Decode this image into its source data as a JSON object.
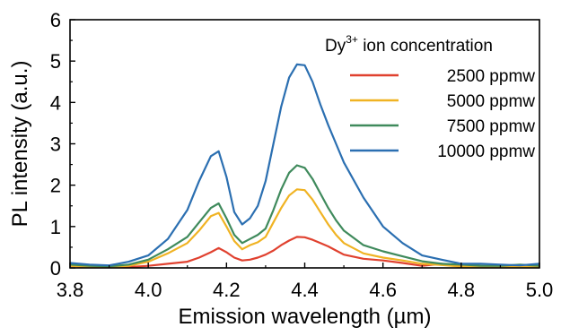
{
  "chart_data": {
    "type": "line",
    "title": "",
    "xlabel": "Emission wavelength (µm)",
    "ylabel": "PL intensity (a.u.)",
    "xlim": [
      3.8,
      5.0
    ],
    "ylim": [
      0,
      6
    ],
    "xticks": [
      "3.8",
      "4.0",
      "4.2",
      "4.4",
      "4.6",
      "4.8",
      "5.0"
    ],
    "yticks": [
      "0",
      "1",
      "2",
      "3",
      "4",
      "5",
      "6"
    ],
    "grid": false,
    "legend_position": "top-right",
    "legend_title": {
      "base": "Dy",
      "sup": "3+",
      "rest": " ion concentration"
    },
    "series": [
      {
        "name": "2500 ppmw",
        "color": "#e0412f",
        "x": [
          3.8,
          3.85,
          3.9,
          3.95,
          4.0,
          4.05,
          4.1,
          4.13,
          4.16,
          4.18,
          4.2,
          4.22,
          4.24,
          4.26,
          4.28,
          4.3,
          4.32,
          4.34,
          4.36,
          4.38,
          4.4,
          4.42,
          4.44,
          4.46,
          4.48,
          4.5,
          4.55,
          4.6,
          4.65,
          4.7,
          4.75,
          4.8,
          4.85,
          4.9,
          4.95,
          5.0
        ],
        "y": [
          0.05,
          0.02,
          0.03,
          0.02,
          0.05,
          0.1,
          0.15,
          0.25,
          0.38,
          0.48,
          0.38,
          0.25,
          0.18,
          0.2,
          0.25,
          0.32,
          0.42,
          0.55,
          0.66,
          0.75,
          0.74,
          0.68,
          0.6,
          0.52,
          0.42,
          0.32,
          0.22,
          0.18,
          0.12,
          0.05,
          0.1,
          0.05,
          0.03,
          0.02,
          0.02,
          0.02
        ]
      },
      {
        "name": "5000 ppmw",
        "color": "#f0b323",
        "x": [
          3.8,
          3.85,
          3.9,
          3.95,
          4.0,
          4.05,
          4.1,
          4.13,
          4.16,
          4.18,
          4.2,
          4.22,
          4.24,
          4.26,
          4.28,
          4.3,
          4.32,
          4.34,
          4.36,
          4.38,
          4.4,
          4.42,
          4.44,
          4.46,
          4.48,
          4.5,
          4.55,
          4.6,
          4.65,
          4.7,
          4.75,
          4.8,
          4.85,
          4.9,
          4.95,
          5.0
        ],
        "y": [
          0.05,
          0.03,
          0.02,
          0.05,
          0.15,
          0.35,
          0.6,
          0.9,
          1.25,
          1.33,
          1.0,
          0.65,
          0.45,
          0.55,
          0.62,
          0.75,
          1.1,
          1.45,
          1.75,
          1.9,
          1.88,
          1.65,
          1.35,
          1.05,
          0.8,
          0.6,
          0.35,
          0.25,
          0.18,
          0.1,
          0.07,
          0.03,
          0.03,
          0.02,
          0.02,
          0.02
        ]
      },
      {
        "name": "7500 ppmw",
        "color": "#3f8a5c",
        "x": [
          3.8,
          3.85,
          3.9,
          3.95,
          4.0,
          4.05,
          4.1,
          4.13,
          4.16,
          4.18,
          4.2,
          4.22,
          4.24,
          4.26,
          4.28,
          4.3,
          4.32,
          4.34,
          4.36,
          4.38,
          4.4,
          4.42,
          4.44,
          4.46,
          4.48,
          4.5,
          4.55,
          4.6,
          4.65,
          4.7,
          4.75,
          4.8,
          4.85,
          4.9,
          4.95,
          5.0
        ],
        "y": [
          0.08,
          0.05,
          0.04,
          0.08,
          0.2,
          0.45,
          0.75,
          1.1,
          1.45,
          1.56,
          1.2,
          0.8,
          0.6,
          0.7,
          0.8,
          0.95,
          1.4,
          1.9,
          2.3,
          2.48,
          2.42,
          2.15,
          1.8,
          1.45,
          1.15,
          0.9,
          0.55,
          0.4,
          0.28,
          0.16,
          0.1,
          0.08,
          0.05,
          0.05,
          0.08,
          0.05
        ]
      },
      {
        "name": "10000 ppmw",
        "color": "#2b6fb1",
        "x": [
          3.8,
          3.85,
          3.9,
          3.95,
          4.0,
          4.05,
          4.1,
          4.13,
          4.16,
          4.18,
          4.2,
          4.22,
          4.24,
          4.26,
          4.28,
          4.3,
          4.32,
          4.34,
          4.36,
          4.38,
          4.4,
          4.42,
          4.44,
          4.46,
          4.48,
          4.5,
          4.55,
          4.6,
          4.65,
          4.7,
          4.75,
          4.8,
          4.85,
          4.9,
          4.95,
          5.0
        ],
        "y": [
          0.12,
          0.08,
          0.06,
          0.15,
          0.3,
          0.7,
          1.4,
          2.1,
          2.7,
          2.82,
          2.2,
          1.35,
          1.05,
          1.2,
          1.5,
          2.1,
          3.0,
          3.9,
          4.6,
          4.92,
          4.9,
          4.5,
          3.95,
          3.45,
          3.0,
          2.55,
          1.7,
          1.0,
          0.6,
          0.3,
          0.2,
          0.1,
          0.1,
          0.08,
          0.06,
          0.1
        ]
      }
    ]
  }
}
